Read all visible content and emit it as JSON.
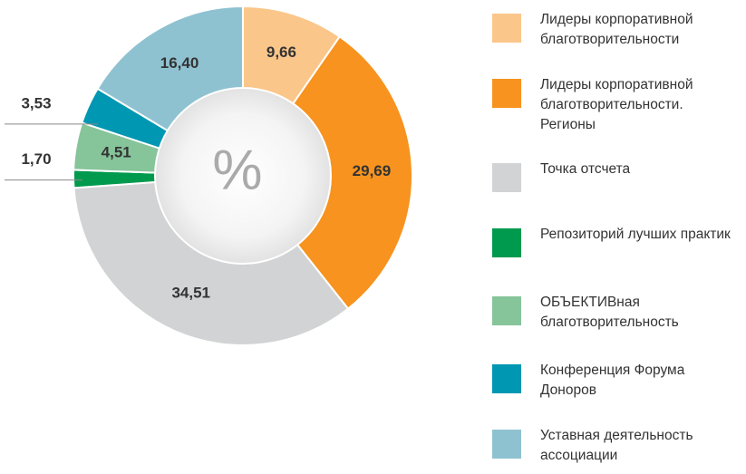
{
  "chart_data": {
    "type": "donut",
    "center_label": "%",
    "categories": [
      "Лидеры корпоративной благотворительности",
      "Лидеры корпоративной благотворительности. Регионы",
      "Точка отсчета",
      "Репозиторий лучших практик",
      "ОБЪЕКТИВная благотворительность",
      "Конференция Форума Доноров",
      "Уставная деятельность ассоциации"
    ],
    "values": [
      9.66,
      29.69,
      34.51,
      1.7,
      4.51,
      3.53,
      16.4
    ],
    "value_labels": [
      "9,66",
      "29,69",
      "34,51",
      "1,70",
      "4,51",
      "3,53",
      "16,40"
    ],
    "colors": [
      "#fbc68a",
      "#f7931e",
      "#d1d3d4",
      "#009a4e",
      "#86c49a",
      "#0097b2",
      "#8fc2d1"
    ],
    "legend": "right"
  }
}
